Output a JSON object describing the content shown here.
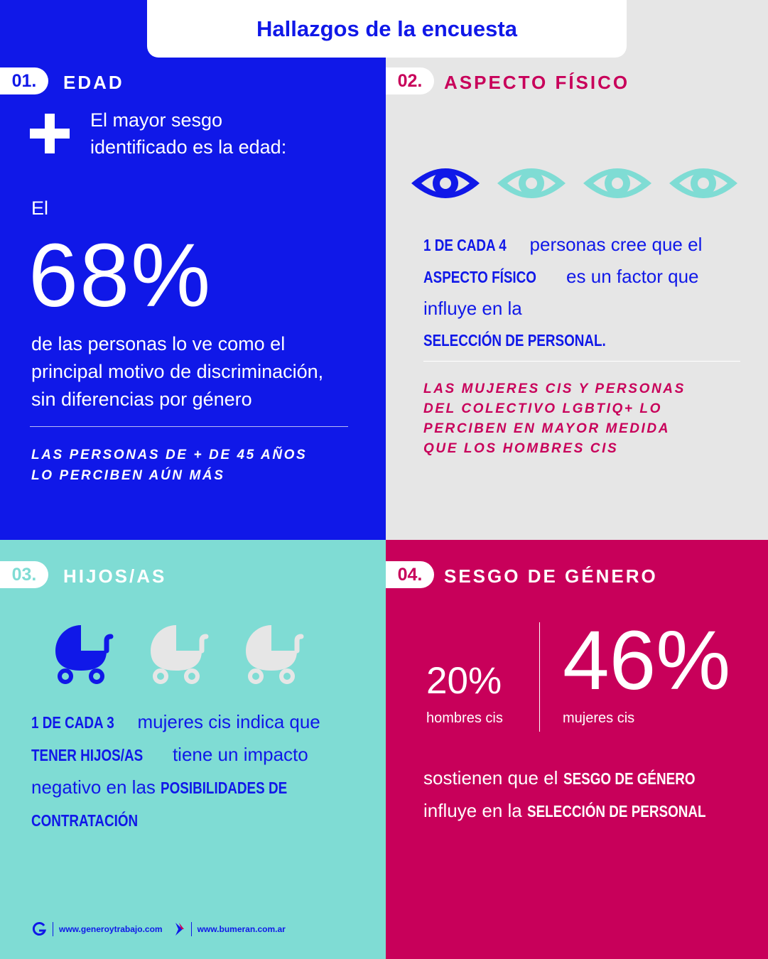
{
  "header": {
    "title": "Hallazgos de la encuesta"
  },
  "colors": {
    "blue": "#1018e8",
    "grey": "#e6e6e6",
    "teal": "#7fdcd4",
    "magenta": "#c8005a",
    "white": "#ffffff"
  },
  "sections": {
    "edad": {
      "number": "01.",
      "title": "EDAD",
      "icon": "plus-icon",
      "lead_line1": "El mayor sesgo",
      "lead_line2": "identificado es la edad:",
      "prefix": "El",
      "stat": "68%",
      "desc_line1": "de las personas lo ve como el",
      "desc_line2": "principal motivo de discriminación,",
      "desc_line3": "sin diferencias por género",
      "note_line1": "LAS PERSONAS DE + DE 45 AÑOS",
      "note_line2": "LO PERCIBEN AÚN MÁS"
    },
    "aspecto": {
      "number": "02.",
      "title": "ASPECTO FÍSICO",
      "icons": {
        "name": "eye-icon",
        "total": 4,
        "highlighted": 1
      },
      "text_a": "1 DE CADA 4",
      "text_b": " personas cree que el",
      "text_c": "ASPECTO FÍSICO",
      "text_d": " es un factor que",
      "text_e": "influye en la ",
      "text_f": "SELECCIÓN DE PERSONAL.",
      "note_line1": "LAS MUJERES CIS Y PERSONAS",
      "note_line2": "DEL COLECTIVO LGBTIQ+ LO",
      "note_line3": "PERCIBEN EN MAYOR MEDIDA",
      "note_line4": "QUE LOS HOMBRES CIS"
    },
    "hijos": {
      "number": "03.",
      "title": "HIJOS/AS",
      "icons": {
        "name": "stroller-icon",
        "total": 3,
        "highlighted": 1
      },
      "text_a": "1 DE CADA 3",
      "text_b": " mujeres cis indica que",
      "text_c": "TENER HIJOS/AS",
      "text_d": " tiene un impacto",
      "text_e": "negativo en las ",
      "text_f": "POSIBILIDADES DE",
      "text_g": "CONTRATACIÓN"
    },
    "genero": {
      "number": "04.",
      "title": "SESGO DE GÉNERO",
      "stat_men": "20%",
      "label_men": "hombres cis",
      "stat_women": "46%",
      "label_women": "mujeres cis",
      "text_a": "sostienen que el ",
      "text_b": "SESGO DE GÉNERO",
      "text_c": "influye en la ",
      "text_d": "SELECCIÓN DE PERSONAL"
    }
  },
  "footer": {
    "link1": "www.generoytrabajo.com",
    "link2": "www.bumeran.com.ar"
  }
}
